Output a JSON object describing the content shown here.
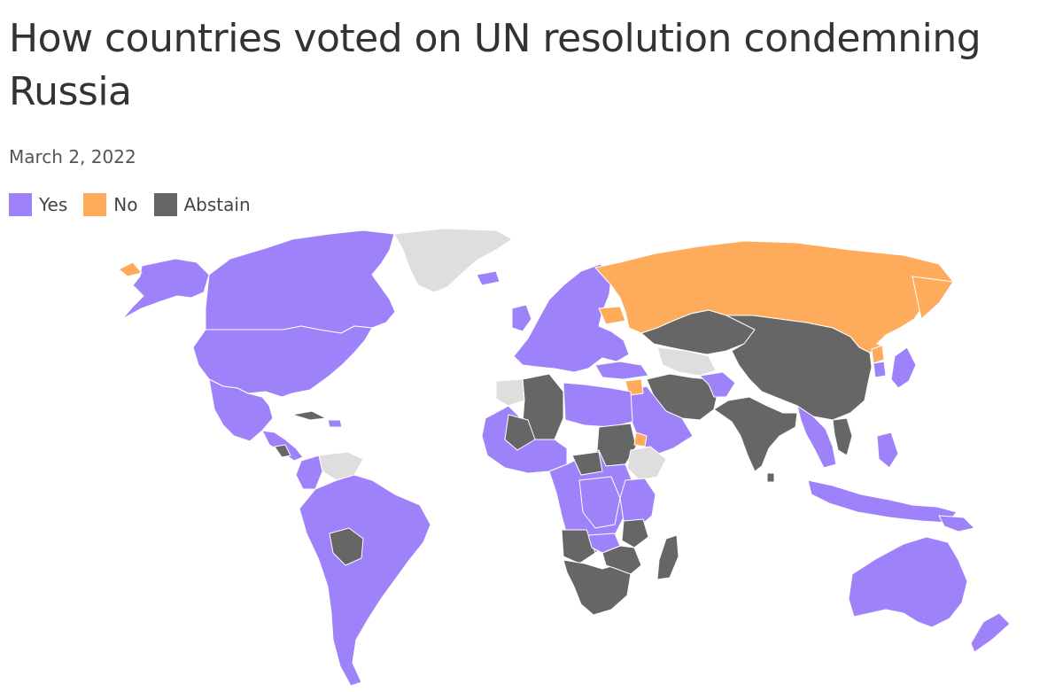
{
  "header": {
    "title": "How countries voted on UN resolution condemning Russia",
    "date": "March 2, 2022"
  },
  "legend": [
    {
      "label": "Yes",
      "color": "#9e82fa"
    },
    {
      "label": "No",
      "color": "#ffab5c"
    },
    {
      "label": "Abstain",
      "color": "#666666"
    }
  ],
  "colors": {
    "yes": "#9e82fa",
    "no": "#ffab5c",
    "abstain": "#666666",
    "no_vote": "#dedede"
  },
  "votes": {
    "No": [
      "Russia",
      "Belarus",
      "North Korea",
      "Eritrea",
      "Syria"
    ],
    "Abstain": [
      "China",
      "India",
      "Pakistan",
      "Iran",
      "Iraq",
      "Kazakhstan",
      "Kyrgyzstan",
      "Tajikistan",
      "Mongolia",
      "Vietnam",
      "Laos",
      "Bangladesh",
      "Sri Lanka",
      "Algeria",
      "Mali",
      "Sudan",
      "South Sudan",
      "Central African Republic",
      "Congo",
      "Angola",
      "Namibia",
      "Zimbabwe",
      "Mozambique",
      "Madagascar",
      "South Africa",
      "Tanzania",
      "Uganda",
      "Senegal",
      "Bolivia",
      "Nicaragua",
      "Cuba",
      "El Salvador",
      "Armenia",
      "Equatorial Guinea"
    ],
    "No vote": [
      "Greenland",
      "Uzbekistan",
      "Turkmenistan",
      "Azerbaijan",
      "Venezuela",
      "Ethiopia",
      "Morocco",
      "Guinea",
      "Burkina Faso",
      "Cameroon",
      "Togo",
      "Eswatini",
      "Guinea-Bissau"
    ]
  }
}
